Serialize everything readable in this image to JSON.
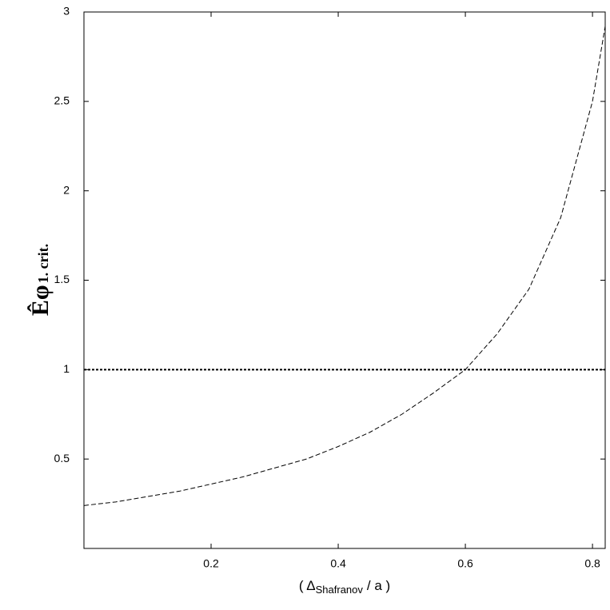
{
  "chart_data": {
    "type": "line",
    "y_label": {
      "main": "Êφ",
      "sub": "1. crit."
    },
    "x_label": {
      "head": "( Δ",
      "sub": "Shafranov",
      "tail": "/ a )"
    },
    "x": [
      0,
      0.05,
      0.1,
      0.15,
      0.2,
      0.25,
      0.3,
      0.35,
      0.4,
      0.45,
      0.5,
      0.55,
      0.6,
      0.65,
      0.7,
      0.75,
      0.8,
      0.82
    ],
    "series": [
      {
        "color": "#000000",
        "values": [
          0.24,
          0.26,
          0.29,
          0.32,
          0.36,
          0.4,
          0.45,
          0.5,
          0.57,
          0.65,
          0.75,
          0.87,
          1.0,
          1.2,
          1.45,
          1.85,
          2.5,
          2.92
        ]
      }
    ],
    "hlines": [
      1
    ],
    "xlim": [
      0,
      0.82
    ],
    "ylim": [
      0,
      3
    ],
    "xticks": [
      0.2,
      0.4,
      0.6,
      0.8
    ],
    "yticks": [
      0.5,
      1,
      1.5,
      2,
      2.5,
      3
    ],
    "grid": false
  }
}
